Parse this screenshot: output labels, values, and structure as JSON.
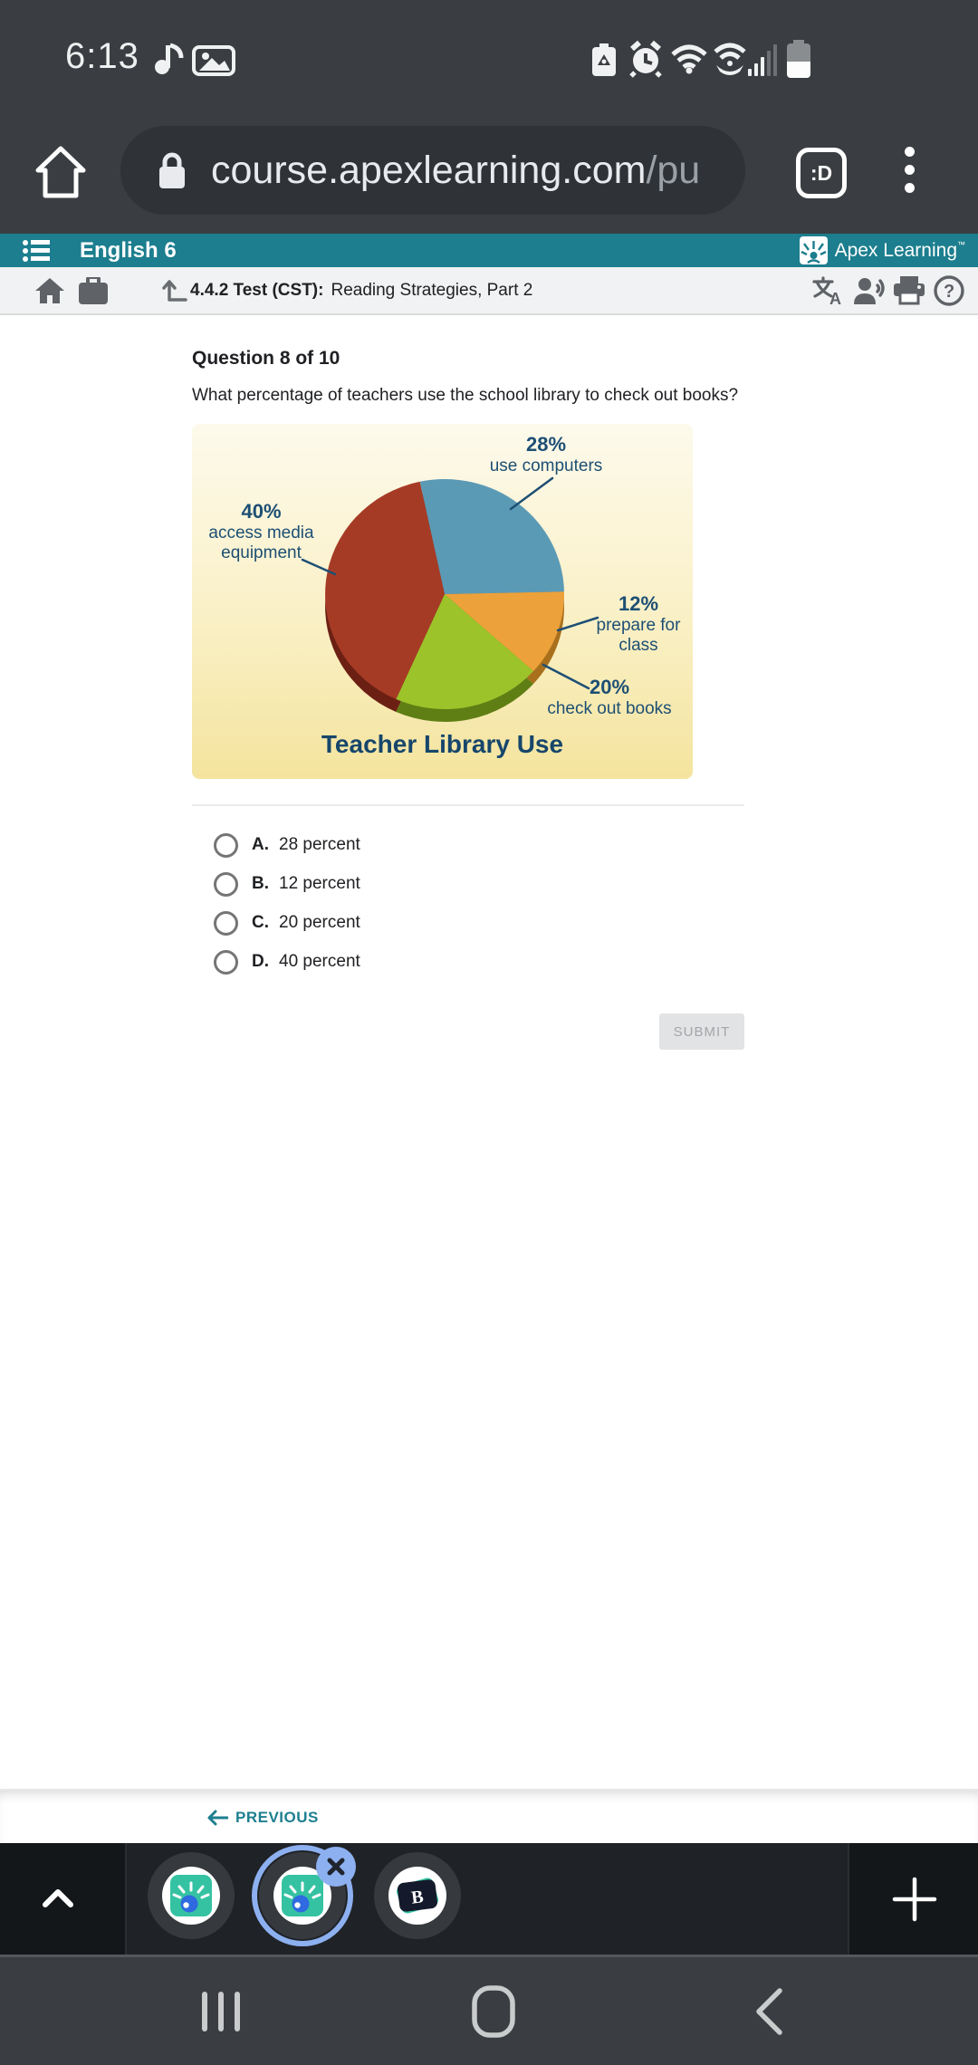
{
  "status_bar": {
    "time": "6:13",
    "icons": [
      "tiktok-icon",
      "gallery-icon",
      "battery-saver-icon",
      "alarm-icon",
      "wifi-icon",
      "wifi-calling-icon",
      "signal-icon",
      "battery-icon"
    ]
  },
  "browser": {
    "url_main": "course.apexlearning.com",
    "url_secondary": "/pu",
    "tab_badge": ":D"
  },
  "course_header": {
    "title": "English 6",
    "brand": "Apex Learning",
    "brand_tm": "™",
    "accent_color": "#1c7e8e"
  },
  "toolbar": {
    "breadcrumb_bold": "4.4.2  Test (CST):",
    "breadcrumb_rest": "Reading Strategies, Part 2"
  },
  "question": {
    "number_label": "Question 8 of 10",
    "text": "What percentage of teachers use the school library to check out books?"
  },
  "chart_data": {
    "type": "pie",
    "title": "Teacher Library Use",
    "start_angle_deg": -12,
    "label_color": "#1d4f74",
    "slices": [
      {
        "label": "use computers",
        "label_lines": [
          "use computers"
        ],
        "value": 28,
        "color": "#5b9ab5",
        "rim_color": "#3d6d84"
      },
      {
        "label": "prepare for class",
        "label_lines": [
          "prepare for",
          "class"
        ],
        "value": 12,
        "color": "#eda13a",
        "rim_color": "#a8701d"
      },
      {
        "label": "check out books",
        "label_lines": [
          "check out books"
        ],
        "value": 20,
        "color": "#9cc32a",
        "rim_color": "#5f7f15"
      },
      {
        "label": "access media equipment",
        "label_lines": [
          "access media",
          "equipment"
        ],
        "value": 40,
        "color": "#a63b25",
        "rim_color": "#6b2013"
      }
    ]
  },
  "options": [
    {
      "letter": "A.",
      "text": "28 percent"
    },
    {
      "letter": "B.",
      "text": "12 percent"
    },
    {
      "letter": "C.",
      "text": "20 percent"
    },
    {
      "letter": "D.",
      "text": "40 percent"
    }
  ],
  "submit_label": "SUBMIT",
  "footer": {
    "previous_label": "PREVIOUS"
  }
}
